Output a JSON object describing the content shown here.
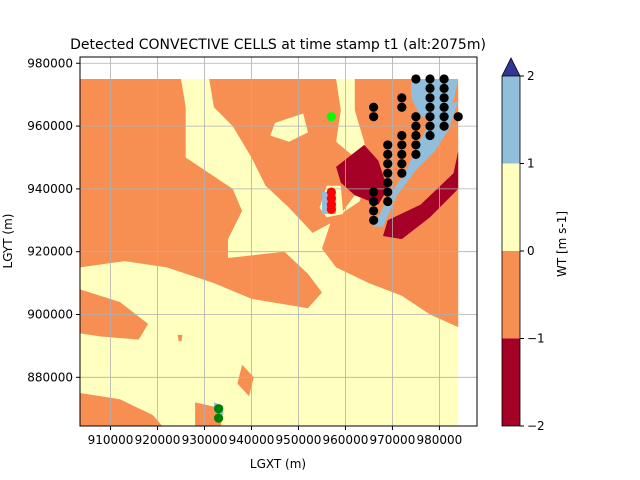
{
  "chart_data": {
    "type": "contour",
    "title": "Detected CONVECTIVE CELLS at time stamp t1 (alt:2075m)",
    "xlabel": "LGXT (m)",
    "ylabel": "LGYT (m)",
    "xlim": [
      903500,
      988000
    ],
    "ylim": [
      864500,
      982000
    ],
    "data_extent": {
      "x": [
        903500,
        984000
      ],
      "y": [
        864500,
        975000
      ]
    },
    "grid": true,
    "xticks": [
      910000,
      920000,
      930000,
      940000,
      950000,
      960000,
      970000,
      980000
    ],
    "xtick_labels": [
      "910000",
      "920000",
      "930000",
      "940000",
      "950000",
      "960000",
      "970000",
      "980000"
    ],
    "yticks": [
      880000,
      900000,
      920000,
      940000,
      960000,
      980000
    ],
    "ytick_labels": [
      "880000",
      "900000",
      "920000",
      "940000",
      "960000",
      "980000"
    ],
    "colorbar": {
      "label": "WT [m s-1]",
      "levels": [
        -2,
        -1,
        0,
        1,
        2
      ],
      "tick_labels": [
        "−2",
        "−1",
        "0",
        "1",
        "2"
      ],
      "band_colors": [
        "#a50026",
        "#f88f52",
        "#ffffbf",
        "#91bfdb"
      ],
      "extend_max_color": "#313695"
    },
    "regions": [
      {
        "level": "-1 to 0",
        "color": "#f88f52",
        "polygon": [
          [
            903500,
            975000
          ],
          [
            925000,
            975000
          ],
          [
            926000,
            966000
          ],
          [
            926000,
            950000
          ],
          [
            936000,
            940000
          ],
          [
            938000,
            933000
          ],
          [
            935000,
            924000
          ],
          [
            935000,
            918000
          ],
          [
            947000,
            920000
          ],
          [
            952000,
            913000
          ],
          [
            955000,
            907000
          ],
          [
            952000,
            902000
          ],
          [
            940000,
            905000
          ],
          [
            932000,
            910000
          ],
          [
            922000,
            915000
          ],
          [
            913000,
            917000
          ],
          [
            903500,
            915000
          ]
        ]
      },
      {
        "level": "-1 to 0",
        "color": "#f88f52",
        "polygon": [
          [
            931000,
            975000
          ],
          [
            958000,
            975000
          ],
          [
            959000,
            965000
          ],
          [
            958000,
            955000
          ],
          [
            962000,
            950000
          ],
          [
            962000,
            938000
          ],
          [
            958000,
            930000
          ],
          [
            953000,
            926000
          ],
          [
            948000,
            934000
          ],
          [
            943000,
            941000
          ],
          [
            940000,
            950000
          ],
          [
            936000,
            960000
          ],
          [
            932000,
            966000
          ]
        ]
      },
      {
        "level": "-1 to 0",
        "color": "#f88f52",
        "polygon": [
          [
            962000,
            975000
          ],
          [
            984000,
            975000
          ],
          [
            984000,
            896000
          ],
          [
            978000,
            900000
          ],
          [
            972000,
            906000
          ],
          [
            965000,
            910000
          ],
          [
            958000,
            915000
          ],
          [
            955000,
            921000
          ],
          [
            957000,
            930000
          ],
          [
            963000,
            936000
          ],
          [
            965000,
            945000
          ],
          [
            964000,
            955000
          ],
          [
            962000,
            965000
          ]
        ]
      },
      {
        "level": "-1 to 0",
        "color": "#f88f52",
        "polygon": [
          [
            903500,
            908000
          ],
          [
            912000,
            904000
          ],
          [
            918000,
            897000
          ],
          [
            916000,
            892000
          ],
          [
            908000,
            893000
          ],
          [
            903500,
            894000
          ]
        ]
      },
      {
        "level": "-1 to 0",
        "color": "#f88f52",
        "polygon": [
          [
            903500,
            875000
          ],
          [
            912000,
            873000
          ],
          [
            919000,
            868000
          ],
          [
            921000,
            864500
          ],
          [
            903500,
            864500
          ]
        ]
      },
      {
        "level": "-1 to 0",
        "color": "#f88f52",
        "polygon": [
          [
            928000,
            872000
          ],
          [
            934000,
            870000
          ],
          [
            933500,
            864500
          ],
          [
            928000,
            864500
          ]
        ]
      },
      {
        "level": "-1 to 0",
        "color": "#f88f52",
        "polygon": [
          [
            938000,
            884000
          ],
          [
            940500,
            880000
          ],
          [
            939500,
            874000
          ],
          [
            937000,
            878000
          ]
        ]
      },
      {
        "level": "-1 to 0",
        "color": "#f88f52",
        "polygon": [
          [
            924300,
            893500
          ],
          [
            925300,
            893500
          ],
          [
            925100,
            891500
          ],
          [
            924500,
            891500
          ]
        ]
      },
      {
        "level": "0 to 1",
        "color": "#ffffbf",
        "polygon": [
          [
            945000,
            961000
          ],
          [
            951000,
            964000
          ],
          [
            952000,
            958000
          ],
          [
            948000,
            955000
          ],
          [
            944000,
            957000
          ]
        ]
      },
      {
        "level": "0 to 1",
        "color": "#ffffbf",
        "polygon": [
          [
            933000,
            945000
          ],
          [
            938000,
            948000
          ],
          [
            940000,
            944000
          ],
          [
            936000,
            941000
          ]
        ]
      },
      {
        "level": "0 to 1",
        "color": "#ffffbf",
        "polygon": [
          [
            956000,
            941000
          ],
          [
            959000,
            941000
          ],
          [
            959500,
            932000
          ],
          [
            956000,
            931000
          ],
          [
            954500,
            934000
          ]
        ]
      },
      {
        "level": "-2 to -1",
        "color": "#a50026",
        "polygon": [
          [
            958000,
            947000
          ],
          [
            964000,
            954000
          ],
          [
            967000,
            949000
          ],
          [
            969000,
            940000
          ],
          [
            967000,
            935000
          ],
          [
            962000,
            938000
          ],
          [
            959000,
            942000
          ]
        ]
      },
      {
        "level": "-2 to -1",
        "color": "#a50026",
        "polygon": [
          [
            969000,
            930000
          ],
          [
            976000,
            935000
          ],
          [
            983000,
            945000
          ],
          [
            984000,
            952000
          ],
          [
            984000,
            940000
          ],
          [
            978000,
            931000
          ],
          [
            972000,
            924000
          ],
          [
            968000,
            925000
          ]
        ]
      },
      {
        "level": "-2 to -1",
        "color": "#a50026",
        "polygon": [
          [
            956500,
            937000
          ],
          [
            957500,
            937000
          ],
          [
            957700,
            934000
          ],
          [
            956300,
            934000
          ]
        ]
      },
      {
        "level": "1 to 2",
        "color": "#91bfdb",
        "polygon": [
          [
            966000,
            928000
          ],
          [
            969000,
            937000
          ],
          [
            973000,
            946000
          ],
          [
            976000,
            956000
          ],
          [
            979000,
            963000
          ],
          [
            982000,
            967000
          ],
          [
            984000,
            968000
          ],
          [
            982000,
            959000
          ],
          [
            979000,
            952000
          ],
          [
            975000,
            946000
          ],
          [
            971000,
            938000
          ],
          [
            968000,
            928000
          ]
        ]
      },
      {
        "level": "1 to 2",
        "color": "#91bfdb",
        "polygon": [
          [
            974000,
            975000
          ],
          [
            984000,
            975000
          ],
          [
            983000,
            968000
          ],
          [
            980000,
            963000
          ],
          [
            976000,
            963000
          ],
          [
            974000,
            969000
          ]
        ]
      },
      {
        "level": "1 to 2",
        "color": "#91bfdb",
        "polygon": [
          [
            955000,
            939000
          ],
          [
            958000,
            939000
          ],
          [
            958000,
            932000
          ],
          [
            955000,
            932000
          ]
        ]
      },
      {
        "level": "1 to 2",
        "color": "#91bfdb",
        "polygon": [
          [
            932000,
            872000
          ],
          [
            934000,
            871000
          ],
          [
            934000,
            868000
          ],
          [
            932000,
            869000
          ]
        ]
      }
    ],
    "series": [
      {
        "color": "#000000",
        "points": [
          [
            975000,
            975000
          ],
          [
            978000,
            975000
          ],
          [
            981000,
            975000
          ],
          [
            978000,
            972000
          ],
          [
            981000,
            972000
          ],
          [
            978000,
            969000
          ],
          [
            981000,
            969000
          ],
          [
            978000,
            966000
          ],
          [
            981000,
            966000
          ],
          [
            972000,
            969000
          ],
          [
            972000,
            966000
          ],
          [
            975000,
            963000
          ],
          [
            978000,
            963000
          ],
          [
            981000,
            963000
          ],
          [
            975000,
            960000
          ],
          [
            978000,
            960000
          ],
          [
            981000,
            960000
          ],
          [
            975000,
            957000
          ],
          [
            978000,
            957000
          ],
          [
            972000,
            957000
          ],
          [
            975000,
            954000
          ],
          [
            972000,
            954000
          ],
          [
            969000,
            954000
          ],
          [
            975000,
            951000
          ],
          [
            972000,
            951000
          ],
          [
            969000,
            951000
          ],
          [
            972000,
            948000
          ],
          [
            969000,
            948000
          ],
          [
            972000,
            945000
          ],
          [
            969000,
            945000
          ],
          [
            969000,
            942000
          ],
          [
            966000,
            939000
          ],
          [
            969000,
            939000
          ],
          [
            966000,
            936000
          ],
          [
            969000,
            936000
          ],
          [
            966000,
            933000
          ],
          [
            966000,
            930000
          ],
          [
            966000,
            966000
          ],
          [
            966000,
            963000
          ],
          [
            984000,
            963000
          ]
        ]
      },
      {
        "color": "#ff0000",
        "points": [
          [
            957000,
            939000
          ],
          [
            957000,
            937000
          ],
          [
            957000,
            935000
          ],
          [
            957000,
            933500
          ]
        ]
      },
      {
        "color": "#00ff00",
        "points": [
          [
            957000,
            963000
          ]
        ]
      },
      {
        "color": "#008000",
        "points": [
          [
            933000,
            870000
          ],
          [
            933000,
            867000
          ]
        ]
      }
    ]
  }
}
